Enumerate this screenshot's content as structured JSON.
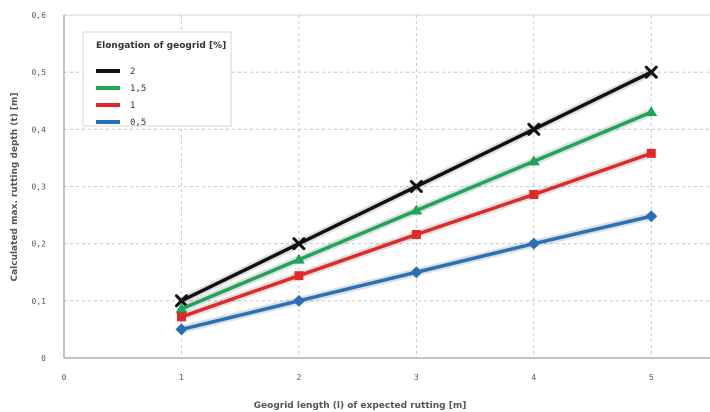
{
  "chart_data": {
    "type": "line",
    "title": "",
    "xlabel": "Geogrid length (l) of expected rutting [m]",
    "ylabel": "Calculated max. rutting depth (t) [m]",
    "xlim": [
      0,
      5.5
    ],
    "ylim": [
      0,
      0.6
    ],
    "x_ticks": [
      "0",
      "1",
      "2",
      "3",
      "4",
      "5"
    ],
    "y_ticks": [
      "0",
      "0,1",
      "0,2",
      "0,3",
      "0,4",
      "0,5",
      "0,6"
    ],
    "grid": true,
    "legend_title": "Elongation of geogrid [%]",
    "legend_position": "top-left",
    "x": [
      1,
      2,
      3,
      4,
      5
    ],
    "series": [
      {
        "name": "2",
        "values": [
          0.1,
          0.2,
          0.3,
          0.4,
          0.5
        ],
        "color": "#111111",
        "marker": "x"
      },
      {
        "name": "1,5",
        "values": [
          0.086,
          0.172,
          0.258,
          0.344,
          0.43
        ],
        "color": "#1fa55a",
        "marker": "triangle"
      },
      {
        "name": "1",
        "values": [
          0.072,
          0.144,
          0.216,
          0.286,
          0.358
        ],
        "color": "#e02a2a",
        "marker": "square"
      },
      {
        "name": "0,5",
        "values": [
          0.05,
          0.1,
          0.15,
          0.2,
          0.248
        ],
        "color": "#2a70b8",
        "marker": "diamond"
      }
    ]
  }
}
